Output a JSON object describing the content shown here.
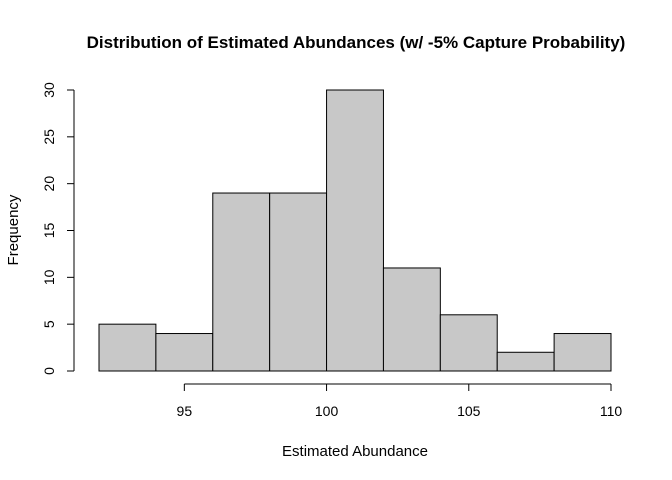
{
  "chart_data": {
    "type": "bar",
    "title": "Distribution of Estimated Abundances (w/ -5% Capture Probability)",
    "xlabel": "Estimated Abundance",
    "ylabel": "Frequency",
    "bins": [
      {
        "start": 92,
        "end": 94,
        "count": 5
      },
      {
        "start": 94,
        "end": 96,
        "count": 4
      },
      {
        "start": 96,
        "end": 98,
        "count": 19
      },
      {
        "start": 98,
        "end": 100,
        "count": 19
      },
      {
        "start": 100,
        "end": 102,
        "count": 30
      },
      {
        "start": 102,
        "end": 104,
        "count": 11
      },
      {
        "start": 104,
        "end": 106,
        "count": 6
      },
      {
        "start": 106,
        "end": 108,
        "count": 2
      },
      {
        "start": 108,
        "end": 110,
        "count": 4
      }
    ],
    "xlim": [
      92,
      110
    ],
    "ylim": [
      0,
      30
    ],
    "x_ticks": [
      95,
      100,
      105,
      110
    ],
    "y_ticks": [
      0,
      5,
      10,
      15,
      20,
      25,
      30
    ],
    "grid": false,
    "bar_color": "#c8c8c8"
  }
}
